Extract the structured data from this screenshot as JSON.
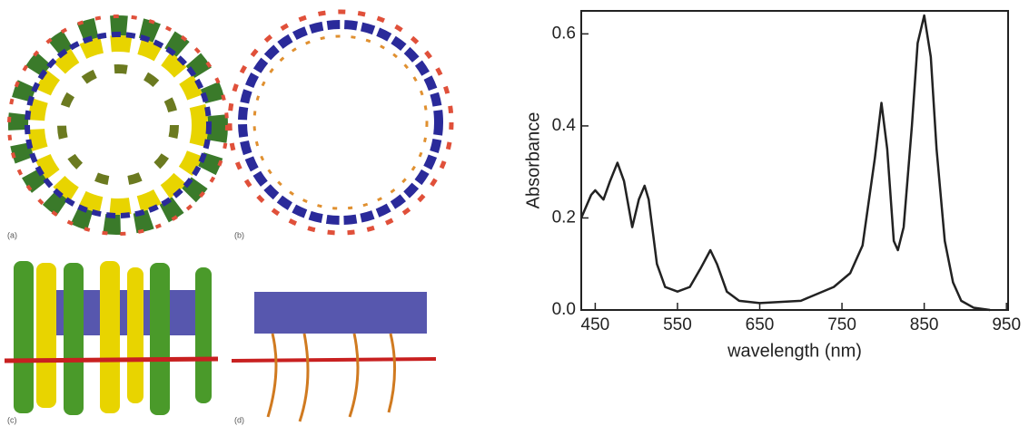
{
  "panel_labels": [
    "(a)",
    "(b)",
    "(c)",
    "(d)"
  ],
  "chart_data": {
    "type": "line",
    "xlabel": "wavelength (nm)",
    "ylabel": "Absorbance",
    "x": [
      433,
      445,
      450,
      460,
      468,
      477,
      485,
      495,
      503,
      510,
      515,
      525,
      535,
      550,
      565,
      578,
      590,
      598,
      610,
      625,
      650,
      700,
      740,
      760,
      775,
      790,
      798,
      805,
      813,
      818,
      825,
      835,
      842,
      850,
      858,
      865,
      875,
      885,
      895,
      910,
      930
    ],
    "series": [
      {
        "color": "#222222",
        "values": [
          0.2,
          0.25,
          0.26,
          0.24,
          0.28,
          0.32,
          0.28,
          0.18,
          0.24,
          0.27,
          0.24,
          0.1,
          0.05,
          0.04,
          0.05,
          0.09,
          0.13,
          0.1,
          0.04,
          0.02,
          0.015,
          0.02,
          0.05,
          0.08,
          0.14,
          0.33,
          0.45,
          0.35,
          0.15,
          0.13,
          0.18,
          0.4,
          0.58,
          0.64,
          0.55,
          0.35,
          0.15,
          0.06,
          0.02,
          0.005,
          0.0
        ]
      }
    ],
    "xlim": [
      433,
      952
    ],
    "ylim": [
      0,
      0.65
    ],
    "xticks": [
      450,
      550,
      650,
      750,
      850,
      950
    ],
    "yticks": [
      {
        "value": 0,
        "label": "0.0"
      },
      0.2,
      0.4,
      0.6
    ]
  }
}
